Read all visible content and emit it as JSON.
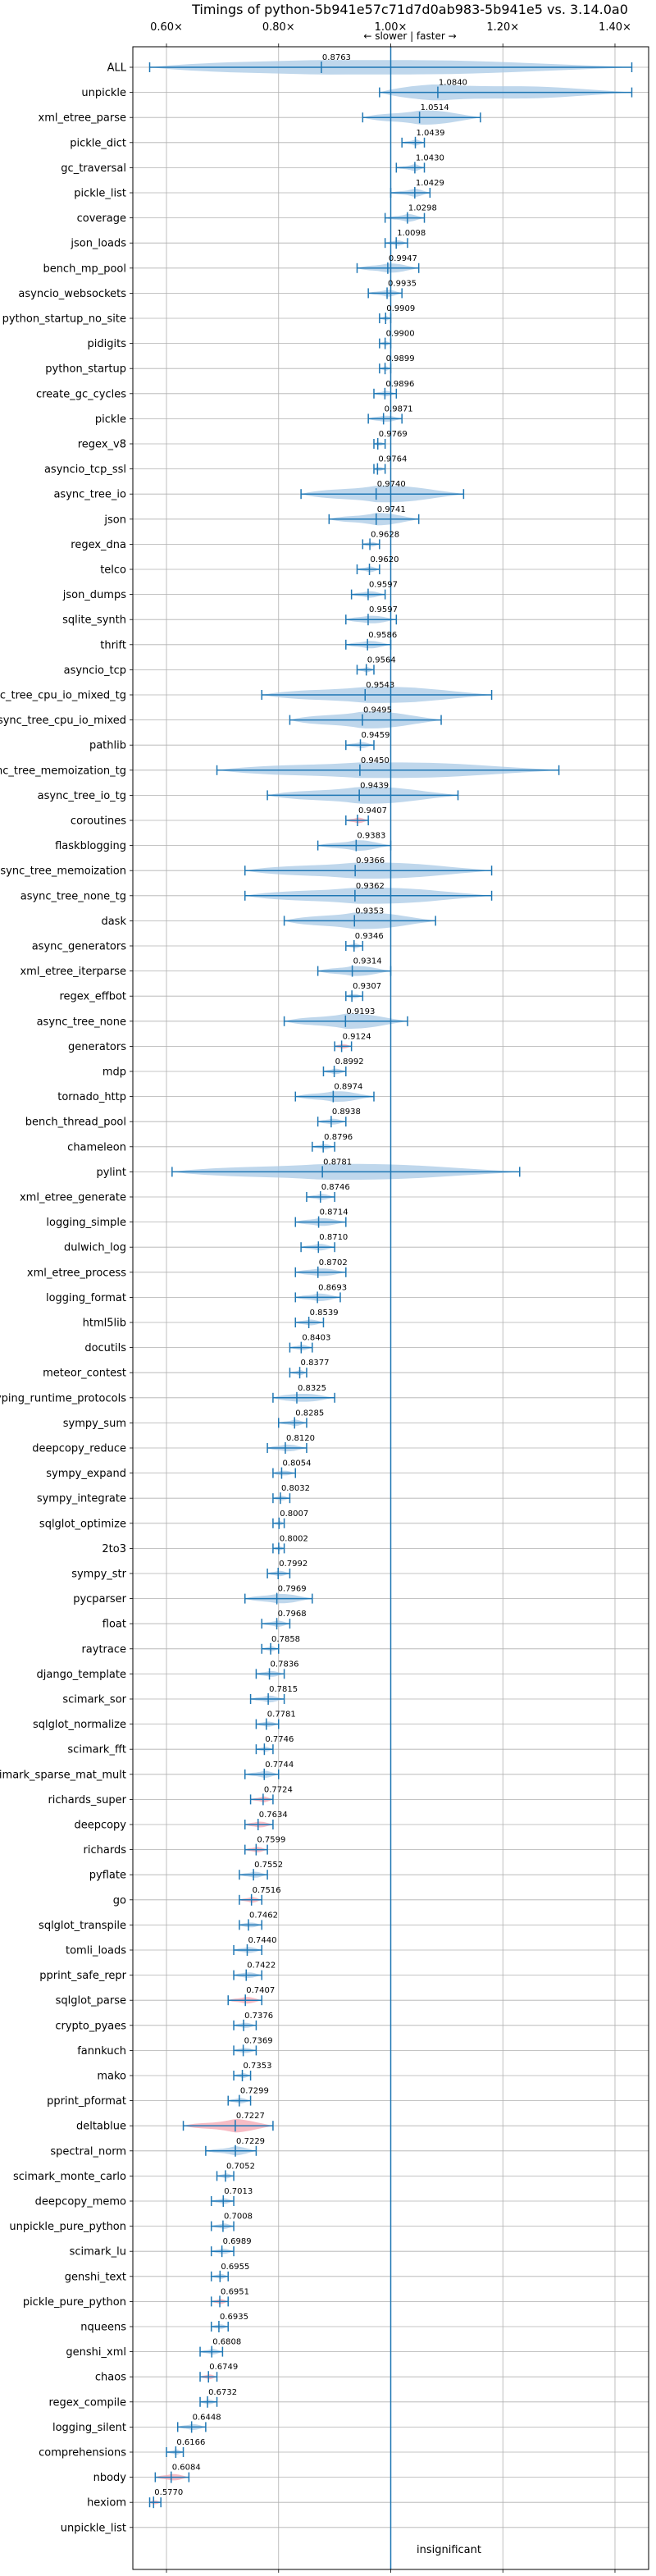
{
  "chart_data": {
    "type": "violin",
    "title": "Timings of python-5b941e57c71d7d0ab983-5b941e5 vs. 3.14.0a0",
    "direction_label": "← slower | faster →",
    "xlim": [
      0.54,
      1.46
    ],
    "x_ticks": [
      0.6,
      0.8,
      1.0,
      1.2,
      1.4
    ],
    "x_tick_labels": [
      "0.60×",
      "0.80×",
      "1.00×",
      "1.20×",
      "1.40×"
    ],
    "reference_line": 1.0,
    "grid": true,
    "colors": {
      "faster": "#1f77b4",
      "slower": "#1f77b4",
      "significant_slower": "#f4a6b2",
      "body": "#a9c9e5"
    },
    "insignificant_label": "insignificant",
    "benchmarks": [
      {
        "name": "ALL",
        "value": 0.8763,
        "label": "0.8763",
        "low": 0.57,
        "high": 1.43,
        "sig": false
      },
      {
        "name": "unpickle",
        "value": 1.084,
        "label": "1.0840",
        "low": 0.98,
        "high": 1.43,
        "sig": false
      },
      {
        "name": "xml_etree_parse",
        "value": 1.0514,
        "label": "1.0514",
        "low": 0.95,
        "high": 1.16,
        "sig": false
      },
      {
        "name": "pickle_dict",
        "value": 1.0439,
        "label": "1.0439",
        "low": 1.02,
        "high": 1.06,
        "sig": false
      },
      {
        "name": "gc_traversal",
        "value": 1.043,
        "label": "1.0430",
        "low": 1.01,
        "high": 1.06,
        "sig": false
      },
      {
        "name": "pickle_list",
        "value": 1.0429,
        "label": "1.0429",
        "low": 1.0,
        "high": 1.07,
        "sig": false
      },
      {
        "name": "coverage",
        "value": 1.0298,
        "label": "1.0298",
        "low": 0.99,
        "high": 1.06,
        "sig": false
      },
      {
        "name": "json_loads",
        "value": 1.0098,
        "label": "1.0098",
        "low": 0.99,
        "high": 1.03,
        "sig": false
      },
      {
        "name": "bench_mp_pool",
        "value": 0.9947,
        "label": "0.9947",
        "low": 0.94,
        "high": 1.05,
        "sig": false
      },
      {
        "name": "asyncio_websockets",
        "value": 0.9935,
        "label": "0.9935",
        "low": 0.96,
        "high": 1.02,
        "sig": false
      },
      {
        "name": "python_startup_no_site",
        "value": 0.9909,
        "label": "0.9909",
        "low": 0.98,
        "high": 1.0,
        "sig": false
      },
      {
        "name": "pidigits",
        "value": 0.99,
        "label": "0.9900",
        "low": 0.98,
        "high": 1.0,
        "sig": false
      },
      {
        "name": "python_startup",
        "value": 0.9899,
        "label": "0.9899",
        "low": 0.98,
        "high": 1.0,
        "sig": false
      },
      {
        "name": "create_gc_cycles",
        "value": 0.9896,
        "label": "0.9896",
        "low": 0.97,
        "high": 1.01,
        "sig": false
      },
      {
        "name": "pickle",
        "value": 0.9871,
        "label": "0.9871",
        "low": 0.96,
        "high": 1.02,
        "sig": false
      },
      {
        "name": "regex_v8",
        "value": 0.9769,
        "label": "0.9769",
        "low": 0.97,
        "high": 0.99,
        "sig": false
      },
      {
        "name": "asyncio_tcp_ssl",
        "value": 0.9764,
        "label": "0.9764",
        "low": 0.97,
        "high": 0.99,
        "sig": false
      },
      {
        "name": "async_tree_io",
        "value": 0.974,
        "label": "0.9740",
        "low": 0.84,
        "high": 1.13,
        "sig": false
      },
      {
        "name": "json",
        "value": 0.9741,
        "label": "0.9741",
        "low": 0.89,
        "high": 1.05,
        "sig": false
      },
      {
        "name": "regex_dna",
        "value": 0.9628,
        "label": "0.9628",
        "low": 0.95,
        "high": 0.98,
        "sig": false
      },
      {
        "name": "telco",
        "value": 0.962,
        "label": "0.9620",
        "low": 0.94,
        "high": 0.98,
        "sig": false
      },
      {
        "name": "json_dumps",
        "value": 0.9597,
        "label": "0.9597",
        "low": 0.93,
        "high": 0.99,
        "sig": false
      },
      {
        "name": "sqlite_synth",
        "value": 0.9597,
        "label": "0.9597",
        "low": 0.92,
        "high": 1.01,
        "sig": false
      },
      {
        "name": "thrift",
        "value": 0.9586,
        "label": "0.9586",
        "low": 0.92,
        "high": 1.0,
        "sig": false
      },
      {
        "name": "asyncio_tcp",
        "value": 0.9564,
        "label": "0.9564",
        "low": 0.94,
        "high": 0.97,
        "sig": false
      },
      {
        "name": "async_tree_cpu_io_mixed_tg",
        "value": 0.9543,
        "label": "0.9543",
        "low": 0.77,
        "high": 1.18,
        "sig": false
      },
      {
        "name": "async_tree_cpu_io_mixed",
        "value": 0.9495,
        "label": "0.9495",
        "low": 0.82,
        "high": 1.09,
        "sig": false
      },
      {
        "name": "pathlib",
        "value": 0.9459,
        "label": "0.9459",
        "low": 0.92,
        "high": 0.97,
        "sig": false
      },
      {
        "name": "async_tree_memoization_tg",
        "value": 0.945,
        "label": "0.9450",
        "low": 0.69,
        "high": 1.3,
        "sig": false
      },
      {
        "name": "async_tree_io_tg",
        "value": 0.9439,
        "label": "0.9439",
        "low": 0.78,
        "high": 1.12,
        "sig": false
      },
      {
        "name": "coroutines",
        "value": 0.9407,
        "label": "0.9407",
        "low": 0.92,
        "high": 0.96,
        "sig": true
      },
      {
        "name": "flaskblogging",
        "value": 0.9383,
        "label": "0.9383",
        "low": 0.87,
        "high": 1.0,
        "sig": false
      },
      {
        "name": "async_tree_memoization",
        "value": 0.9366,
        "label": "0.9366",
        "low": 0.74,
        "high": 1.18,
        "sig": false
      },
      {
        "name": "async_tree_none_tg",
        "value": 0.9362,
        "label": "0.9362",
        "low": 0.74,
        "high": 1.18,
        "sig": false
      },
      {
        "name": "dask",
        "value": 0.9353,
        "label": "0.9353",
        "low": 0.81,
        "high": 1.08,
        "sig": false
      },
      {
        "name": "async_generators",
        "value": 0.9346,
        "label": "0.9346",
        "low": 0.92,
        "high": 0.95,
        "sig": false
      },
      {
        "name": "xml_etree_iterparse",
        "value": 0.9314,
        "label": "0.9314",
        "low": 0.87,
        "high": 1.0,
        "sig": false
      },
      {
        "name": "regex_effbot",
        "value": 0.9307,
        "label": "0.9307",
        "low": 0.92,
        "high": 0.95,
        "sig": false
      },
      {
        "name": "async_tree_none",
        "value": 0.9193,
        "label": "0.9193",
        "low": 0.81,
        "high": 1.03,
        "sig": false
      },
      {
        "name": "generators",
        "value": 0.9124,
        "label": "0.9124",
        "low": 0.9,
        "high": 0.93,
        "sig": true
      },
      {
        "name": "mdp",
        "value": 0.8992,
        "label": "0.8992",
        "low": 0.88,
        "high": 0.92,
        "sig": false
      },
      {
        "name": "tornado_http",
        "value": 0.8974,
        "label": "0.8974",
        "low": 0.83,
        "high": 0.97,
        "sig": false
      },
      {
        "name": "bench_thread_pool",
        "value": 0.8938,
        "label": "0.8938",
        "low": 0.87,
        "high": 0.92,
        "sig": false
      },
      {
        "name": "chameleon",
        "value": 0.8796,
        "label": "0.8796",
        "low": 0.86,
        "high": 0.9,
        "sig": false
      },
      {
        "name": "pylint",
        "value": 0.8781,
        "label": "0.8781",
        "low": 0.61,
        "high": 1.23,
        "sig": false
      },
      {
        "name": "xml_etree_generate",
        "value": 0.8746,
        "label": "0.8746",
        "low": 0.85,
        "high": 0.9,
        "sig": false
      },
      {
        "name": "logging_simple",
        "value": 0.8714,
        "label": "0.8714",
        "low": 0.83,
        "high": 0.92,
        "sig": false
      },
      {
        "name": "dulwich_log",
        "value": 0.871,
        "label": "0.8710",
        "low": 0.84,
        "high": 0.9,
        "sig": false
      },
      {
        "name": "xml_etree_process",
        "value": 0.8702,
        "label": "0.8702",
        "low": 0.83,
        "high": 0.92,
        "sig": false
      },
      {
        "name": "logging_format",
        "value": 0.8693,
        "label": "0.8693",
        "low": 0.83,
        "high": 0.91,
        "sig": false
      },
      {
        "name": "html5lib",
        "value": 0.8539,
        "label": "0.8539",
        "low": 0.83,
        "high": 0.88,
        "sig": false
      },
      {
        "name": "docutils",
        "value": 0.8403,
        "label": "0.8403",
        "low": 0.82,
        "high": 0.86,
        "sig": false
      },
      {
        "name": "meteor_contest",
        "value": 0.8377,
        "label": "0.8377",
        "low": 0.82,
        "high": 0.85,
        "sig": false
      },
      {
        "name": "typing_runtime_protocols",
        "value": 0.8325,
        "label": "0.8325",
        "low": 0.79,
        "high": 0.9,
        "sig": false
      },
      {
        "name": "sympy_sum",
        "value": 0.8285,
        "label": "0.8285",
        "low": 0.8,
        "high": 0.85,
        "sig": false
      },
      {
        "name": "deepcopy_reduce",
        "value": 0.812,
        "label": "0.8120",
        "low": 0.78,
        "high": 0.85,
        "sig": false
      },
      {
        "name": "sympy_expand",
        "value": 0.8054,
        "label": "0.8054",
        "low": 0.79,
        "high": 0.83,
        "sig": false
      },
      {
        "name": "sympy_integrate",
        "value": 0.8032,
        "label": "0.8032",
        "low": 0.79,
        "high": 0.82,
        "sig": false
      },
      {
        "name": "sqlglot_optimize",
        "value": 0.8007,
        "label": "0.8007",
        "low": 0.79,
        "high": 0.81,
        "sig": false
      },
      {
        "name": "2to3",
        "value": 0.8002,
        "label": "0.8002",
        "low": 0.79,
        "high": 0.81,
        "sig": false
      },
      {
        "name": "sympy_str",
        "value": 0.7992,
        "label": "0.7992",
        "low": 0.78,
        "high": 0.82,
        "sig": false
      },
      {
        "name": "pycparser",
        "value": 0.7969,
        "label": "0.7969",
        "low": 0.74,
        "high": 0.86,
        "sig": false
      },
      {
        "name": "float",
        "value": 0.7968,
        "label": "0.7968",
        "low": 0.77,
        "high": 0.82,
        "sig": false
      },
      {
        "name": "raytrace",
        "value": 0.7858,
        "label": "0.7858",
        "low": 0.77,
        "high": 0.8,
        "sig": false
      },
      {
        "name": "django_template",
        "value": 0.7836,
        "label": "0.7836",
        "low": 0.76,
        "high": 0.81,
        "sig": false
      },
      {
        "name": "scimark_sor",
        "value": 0.7815,
        "label": "0.7815",
        "low": 0.75,
        "high": 0.81,
        "sig": false
      },
      {
        "name": "sqlglot_normalize",
        "value": 0.7781,
        "label": "0.7781",
        "low": 0.76,
        "high": 0.8,
        "sig": false
      },
      {
        "name": "scimark_fft",
        "value": 0.7746,
        "label": "0.7746",
        "low": 0.76,
        "high": 0.79,
        "sig": false
      },
      {
        "name": "scimark_sparse_mat_mult",
        "value": 0.7744,
        "label": "0.7744",
        "low": 0.74,
        "high": 0.8,
        "sig": false
      },
      {
        "name": "richards_super",
        "value": 0.7724,
        "label": "0.7724",
        "low": 0.75,
        "high": 0.79,
        "sig": true
      },
      {
        "name": "deepcopy",
        "value": 0.7634,
        "label": "0.7634",
        "low": 0.74,
        "high": 0.79,
        "sig": true
      },
      {
        "name": "richards",
        "value": 0.7599,
        "label": "0.7599",
        "low": 0.74,
        "high": 0.78,
        "sig": true
      },
      {
        "name": "pyflate",
        "value": 0.7552,
        "label": "0.7552",
        "low": 0.73,
        "high": 0.78,
        "sig": false
      },
      {
        "name": "go",
        "value": 0.7516,
        "label": "0.7516",
        "low": 0.73,
        "high": 0.77,
        "sig": true
      },
      {
        "name": "sqlglot_transpile",
        "value": 0.7462,
        "label": "0.7462",
        "low": 0.73,
        "high": 0.77,
        "sig": false
      },
      {
        "name": "tomli_loads",
        "value": 0.744,
        "label": "0.7440",
        "low": 0.72,
        "high": 0.77,
        "sig": false
      },
      {
        "name": "pprint_safe_repr",
        "value": 0.7422,
        "label": "0.7422",
        "low": 0.72,
        "high": 0.77,
        "sig": false
      },
      {
        "name": "sqlglot_parse",
        "value": 0.7407,
        "label": "0.7407",
        "low": 0.71,
        "high": 0.77,
        "sig": true
      },
      {
        "name": "crypto_pyaes",
        "value": 0.7376,
        "label": "0.7376",
        "low": 0.72,
        "high": 0.76,
        "sig": false
      },
      {
        "name": "fannkuch",
        "value": 0.7369,
        "label": "0.7369",
        "low": 0.72,
        "high": 0.76,
        "sig": false
      },
      {
        "name": "mako",
        "value": 0.7353,
        "label": "0.7353",
        "low": 0.72,
        "high": 0.75,
        "sig": false
      },
      {
        "name": "pprint_pformat",
        "value": 0.7299,
        "label": "0.7299",
        "low": 0.71,
        "high": 0.75,
        "sig": false
      },
      {
        "name": "deltablue",
        "value": 0.7227,
        "label": "0.7227",
        "low": 0.63,
        "high": 0.79,
        "sig": true
      },
      {
        "name": "spectral_norm",
        "value": 0.7229,
        "label": "0.7229",
        "low": 0.67,
        "high": 0.76,
        "sig": false
      },
      {
        "name": "scimark_monte_carlo",
        "value": 0.7052,
        "label": "0.7052",
        "low": 0.69,
        "high": 0.72,
        "sig": false
      },
      {
        "name": "deepcopy_memo",
        "value": 0.7013,
        "label": "0.7013",
        "low": 0.68,
        "high": 0.72,
        "sig": false
      },
      {
        "name": "unpickle_pure_python",
        "value": 0.7008,
        "label": "0.7008",
        "low": 0.68,
        "high": 0.72,
        "sig": false
      },
      {
        "name": "scimark_lu",
        "value": 0.6989,
        "label": "0.6989",
        "low": 0.68,
        "high": 0.72,
        "sig": false
      },
      {
        "name": "genshi_text",
        "value": 0.6955,
        "label": "0.6955",
        "low": 0.68,
        "high": 0.71,
        "sig": false
      },
      {
        "name": "pickle_pure_python",
        "value": 0.6951,
        "label": "0.6951",
        "low": 0.68,
        "high": 0.71,
        "sig": true
      },
      {
        "name": "nqueens",
        "value": 0.6935,
        "label": "0.6935",
        "low": 0.68,
        "high": 0.71,
        "sig": false
      },
      {
        "name": "genshi_xml",
        "value": 0.6808,
        "label": "0.6808",
        "low": 0.66,
        "high": 0.7,
        "sig": false
      },
      {
        "name": "chaos",
        "value": 0.6749,
        "label": "0.6749",
        "low": 0.66,
        "high": 0.69,
        "sig": true
      },
      {
        "name": "regex_compile",
        "value": 0.6732,
        "label": "0.6732",
        "low": 0.66,
        "high": 0.69,
        "sig": false
      },
      {
        "name": "logging_silent",
        "value": 0.6448,
        "label": "0.6448",
        "low": 0.62,
        "high": 0.67,
        "sig": false
      },
      {
        "name": "comprehensions",
        "value": 0.6166,
        "label": "0.6166",
        "low": 0.6,
        "high": 0.63,
        "sig": false
      },
      {
        "name": "nbody",
        "value": 0.6084,
        "label": "0.6084",
        "low": 0.58,
        "high": 0.64,
        "sig": true
      },
      {
        "name": "hexiom",
        "value": 0.577,
        "label": "0.5770",
        "low": 0.57,
        "high": 0.59,
        "sig": true
      },
      {
        "name": "unpickle_list",
        "value": null,
        "label": "",
        "low": null,
        "high": null,
        "sig": false
      }
    ]
  }
}
